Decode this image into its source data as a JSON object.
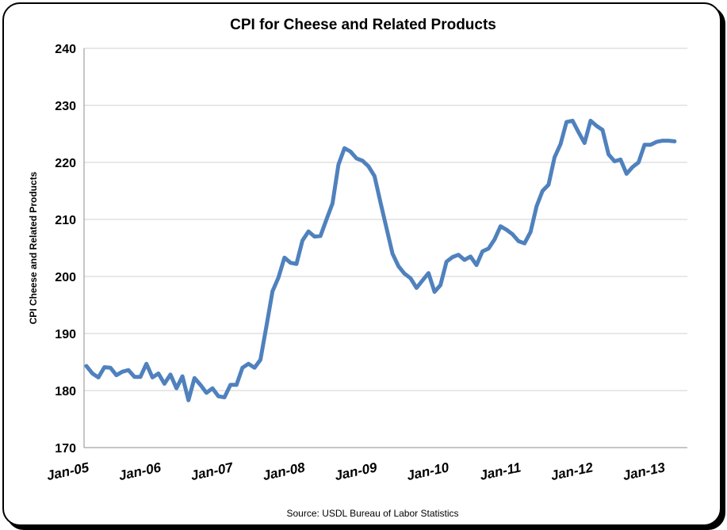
{
  "chart_data": {
    "type": "line",
    "title": "CPI for Cheese and Related Products",
    "ylabel": "CPI Cheese and Related Products",
    "source": "Source: USDL Bureau of Labor Statistics",
    "ylim": [
      170,
      240
    ],
    "yticks": [
      170,
      180,
      190,
      200,
      210,
      220,
      230,
      240
    ],
    "xticks": [
      "Jan-05",
      "Jan-06",
      "Jan-07",
      "Jan-08",
      "Jan-09",
      "Jan-10",
      "Jan-11",
      "Jan-12",
      "Jan-13"
    ],
    "x_start": "Jan-05",
    "x_end": "Mar-13",
    "grid": true,
    "color": "#4F81BD",
    "series": [
      {
        "values": [
          184.3,
          183.0,
          182.3,
          184.1,
          184.0,
          182.7,
          183.3,
          183.6,
          182.4,
          182.4,
          184.7,
          182.3,
          183.0,
          181.2,
          182.8,
          180.4,
          182.5,
          178.3,
          182.2,
          181.0,
          179.6,
          180.4,
          179.0,
          178.8,
          181.0,
          181.0,
          184.0,
          184.7,
          184.0,
          185.4,
          191.3,
          197.4,
          199.8,
          203.3,
          202.4,
          202.2,
          206.3,
          207.9,
          207.0,
          207.1,
          210.0,
          212.8,
          219.6,
          222.5,
          221.9,
          220.7,
          220.3,
          219.3,
          217.6,
          213.0,
          208.5,
          204.0,
          201.8,
          200.5,
          199.7,
          198.0,
          199.3,
          200.6,
          197.3,
          198.5,
          202.6,
          203.4,
          203.8,
          202.9,
          203.5,
          202.0,
          204.4,
          204.9,
          206.5,
          208.8,
          208.2,
          207.4,
          206.2,
          205.8,
          207.8,
          212.3,
          215.0,
          216.1,
          220.9,
          223.2,
          227.1,
          227.3,
          225.3,
          223.4,
          227.3,
          226.4,
          225.7,
          221.4,
          220.2,
          220.5,
          218.0,
          219.2,
          220.0,
          223.1,
          223.1,
          223.6,
          223.8,
          223.8,
          223.7
        ]
      }
    ]
  }
}
